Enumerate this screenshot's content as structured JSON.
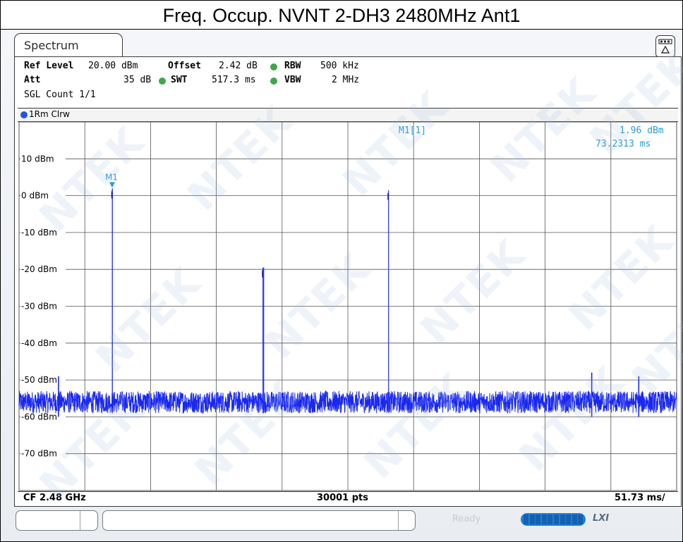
{
  "title": "Freq. Occup. NVNT 2-DH3 2480MHz Ant1",
  "tab": {
    "label": "Spectrum"
  },
  "header": {
    "ref_level_label": "Ref Level",
    "ref_level_value": "20.00 dBm",
    "offset_label": "Offset",
    "offset_value": "2.42 dB",
    "rbw_label": "RBW",
    "rbw_value": "500 kHz",
    "att_label": "Att",
    "att_value": "35 dB",
    "swt_label": "SWT",
    "swt_value": "517.3 ms",
    "vbw_label": "VBW",
    "vbw_value": "2 MHz",
    "sgl_count": "SGL Count 1/1"
  },
  "trace": {
    "label": "1Rm Clrw"
  },
  "marker": {
    "name": "M1",
    "readout_label": "M1[1]",
    "readout_level": "1.96 dBm",
    "readout_time": "73.2313 ms"
  },
  "footer": {
    "center": "CF 2.48 GHz",
    "points": "30001 pts",
    "span": "51.73 ms/"
  },
  "status": {
    "ready": "Ready",
    "lxi": "LXI"
  },
  "watermark": "NTEK",
  "colors": {
    "trace": "#1a28ee",
    "marker": "#2a9ad6",
    "grid": "#555555",
    "indicator": "#3fa64d"
  },
  "chart_data": {
    "type": "line",
    "title": "Freq. Occup. NVNT 2-DH3 2480MHz Ant1",
    "xlabel": "",
    "ylabel": "",
    "x_unit": "ms",
    "xlim": [
      0,
      517.3
    ],
    "ylim": [
      -80,
      20
    ],
    "y_ticks": [
      10,
      0,
      -10,
      -20,
      -30,
      -40,
      -50,
      -60,
      -70
    ],
    "y_tick_labels": [
      "10 dBm",
      "0 dBm",
      "-10 dBm",
      "-20 dBm",
      "-30 dBm",
      "-40 dBm",
      "-50 dBm",
      "-60 dBm",
      "-70 dBm"
    ],
    "grid": true,
    "noise_floor_dbm": -56,
    "series": [
      {
        "name": "1Rm Clrw",
        "bursts": [
          {
            "start_ms": 73.0,
            "end_ms": 73.8,
            "level_dbm": 1.96
          },
          {
            "start_ms": 191.5,
            "end_ms": 192.8,
            "level_dbm": -19.5
          },
          {
            "start_ms": 290.3,
            "end_ms": 291.0,
            "level_dbm": 1.5
          }
        ],
        "small_spikes": [
          {
            "x_ms": 31.0,
            "level_dbm": -49
          },
          {
            "x_ms": 450.5,
            "level_dbm": -48
          },
          {
            "x_ms": 487.5,
            "level_dbm": -49
          }
        ]
      }
    ],
    "markers": [
      {
        "name": "M1",
        "x_ms": 73.2313,
        "y_dbm": 1.96
      }
    ]
  }
}
